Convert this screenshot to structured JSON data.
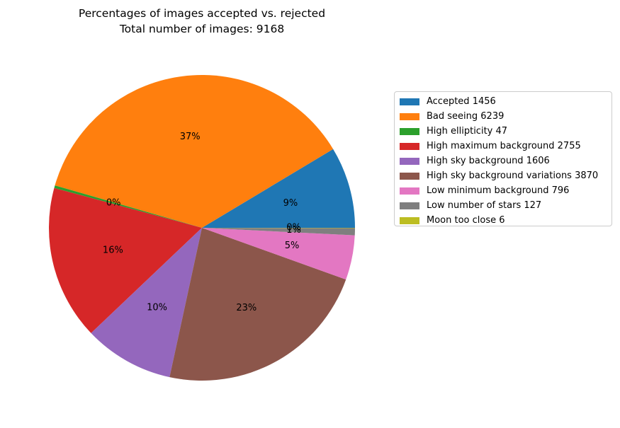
{
  "chart_data": {
    "type": "pie",
    "title": "Percentages of images accepted vs. rejected",
    "subtitle": "Total number of images: 9168",
    "start_angle_deg": 0,
    "direction": "counterclockwise",
    "legend_position": "right",
    "slices": [
      {
        "label": "Accepted 1456",
        "value": 1456,
        "pct_label": "9%",
        "color": "#1f77b4"
      },
      {
        "label": "Bad seeing 6239",
        "value": 6239,
        "pct_label": "37%",
        "color": "#ff7f0e"
      },
      {
        "label": "High ellipticity 47",
        "value": 47,
        "pct_label": "0%",
        "color": "#2ca02c"
      },
      {
        "label": "High maximum background 2755",
        "value": 2755,
        "pct_label": "16%",
        "color": "#d62728"
      },
      {
        "label": "High sky background 1606",
        "value": 1606,
        "pct_label": "10%",
        "color": "#9467bd"
      },
      {
        "label": "High sky background variations 3870",
        "value": 3870,
        "pct_label": "23%",
        "color": "#8c564b"
      },
      {
        "label": "Low minimum background 796",
        "value": 796,
        "pct_label": "5%",
        "color": "#e377c2"
      },
      {
        "label": "Low number of stars 127",
        "value": 127,
        "pct_label": "1%",
        "color": "#7f7f7f"
      },
      {
        "label": "Moon too close 6",
        "value": 6,
        "pct_label": "0%",
        "color": "#bcbd22"
      }
    ]
  }
}
